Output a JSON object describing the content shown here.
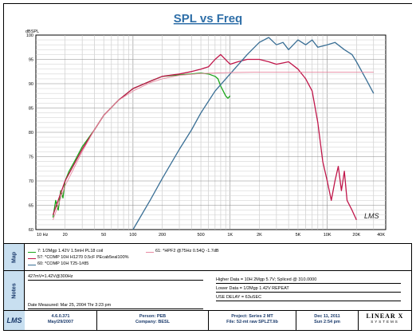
{
  "chart_data": {
    "type": "line",
    "title": "SPL vs Freq",
    "ylabel": "dBSPL",
    "xscale": "log",
    "xlim": [
      10,
      40000
    ],
    "ylim": [
      60,
      100
    ],
    "x_ticks": [
      10,
      20,
      50,
      100,
      200,
      500,
      1000,
      2000,
      5000,
      10000,
      20000,
      40000
    ],
    "x_tick_labels": [
      "10 Hz",
      "20",
      "50",
      "100",
      "200",
      "500",
      "1K",
      "2K",
      "5K",
      "10K",
      "20K",
      "40K"
    ],
    "y_ticks": [
      60,
      65,
      70,
      75,
      80,
      85,
      90,
      95,
      100
    ],
    "y_tick_labels": [
      "60",
      "65",
      "70",
      "75",
      "80",
      "85",
      "90",
      "95",
      "100"
    ],
    "grid": true,
    "series": [
      {
        "name": "7: 1/2Mgp 1.42V 1.5mH PL18 coil",
        "color": "#1aa51a",
        "x": [
          15,
          16,
          17,
          18,
          19,
          20,
          22,
          25,
          30,
          40,
          50,
          70,
          100,
          150,
          200,
          300,
          400,
          500,
          600,
          700,
          750,
          800,
          850,
          900,
          950,
          1000
        ],
        "y": [
          62.5,
          66,
          64,
          68,
          66.5,
          70,
          72,
          74,
          77,
          80.5,
          83.5,
          86.5,
          89,
          90.5,
          91.5,
          91.8,
          92,
          92.2,
          92,
          91.5,
          91,
          89.5,
          88.5,
          87.5,
          87,
          87.5
        ]
      },
      {
        "name": "57: *COMP 10H H1270 0.5cF PEcab5eal100%",
        "color": "#c0164a",
        "x": [
          15,
          20,
          30,
          40,
          50,
          70,
          100,
          150,
          200,
          300,
          400,
          500,
          600,
          700,
          800,
          1000,
          1200,
          1500,
          2000,
          2500,
          3000,
          4000,
          5000,
          6000,
          7000,
          8000,
          9000,
          10000,
          11000,
          12000,
          13000,
          14000,
          15000,
          16000,
          18000,
          20000
        ],
        "y": [
          63,
          70,
          76.5,
          80.5,
          83.5,
          86.5,
          89,
          90.5,
          91.5,
          92,
          92.5,
          93,
          93.5,
          95,
          96,
          94,
          94.5,
          95,
          95,
          94.5,
          94,
          94.5,
          93,
          91,
          88.5,
          82,
          74,
          70,
          66,
          70,
          73,
          68,
          72,
          66,
          64,
          62
        ]
      },
      {
        "name": "60: *COMP 10H T25-1#85",
        "color": "#3a6f95",
        "x": [
          100,
          150,
          200,
          300,
          400,
          500,
          700,
          1000,
          1500,
          2000,
          2500,
          3000,
          3500,
          4000,
          5000,
          6000,
          7000,
          8000,
          10000,
          12000,
          15000,
          18000,
          20000,
          25000,
          30000
        ],
        "y": [
          60,
          66,
          70.5,
          76.5,
          80.5,
          84,
          88.5,
          92,
          96,
          98.5,
          99.5,
          98,
          98.5,
          97,
          99,
          98,
          99,
          97.5,
          98,
          98.5,
          97,
          96,
          94.5,
          91,
          88
        ]
      },
      {
        "name": "61: *HPF2 @75Hz 0.54Q -1.7dB",
        "color": "#e88aa2",
        "x": [
          15,
          20,
          30,
          40,
          50,
          70,
          100,
          150,
          200,
          300,
          500,
          1000,
          2000,
          5000,
          10000,
          20000,
          30000
        ],
        "y": [
          62,
          69,
          76,
          80.5,
          83.5,
          86.5,
          88.5,
          90.2,
          91,
          91.7,
          92.1,
          92.3,
          92.4,
          92.4,
          92.4,
          92.4,
          92.4
        ]
      }
    ]
  },
  "page": {
    "title": "SPL vs Freq",
    "ylabel": "dBSPL",
    "watermark": "LMS"
  },
  "map": {
    "side_label": "Map",
    "legend": [
      {
        "label": "7: 1/2Mgp 1.42V 1.5mH PL18 coil",
        "color": "#1aa51a"
      },
      {
        "label": "57: *COMP 10H H1270 0.5cF PEcab5eal100%",
        "color": "#c0164a"
      },
      {
        "label": "60: *COMP 10H T25-1#85",
        "color": "#3a6f95"
      },
      {
        "label": "61: *HPF2 @75Hz 0.54Q -1.7dB",
        "color": "#e88aa2"
      }
    ]
  },
  "notes": {
    "side_label": "Notes",
    "line1": "427mV=1.42V@300Hz",
    "date_measured": "Date Measured: Mar 25, 2004  Thr  3:23 pm",
    "higher": "Higher Data = 10H 2Mgp 5.7V; Spliced @ 310.0000",
    "lower": "Lower  Data = 1/2Mgp 1.42V REPEAT",
    "delay": "USE DELAY = 63uSEC"
  },
  "footer": {
    "version": "4.6.0.371",
    "version_date": "May/29/2007",
    "person": "Person: PEB",
    "company": "Company: BESL",
    "project": "Project: Series 2 MT",
    "file": "File: 52-mt raw SPLZT.lib",
    "date": "Dec 11, 2011",
    "time": "Sun  2:54 pm",
    "brand_main": "LINEAR X",
    "brand_sub": "SYSTEMS"
  }
}
